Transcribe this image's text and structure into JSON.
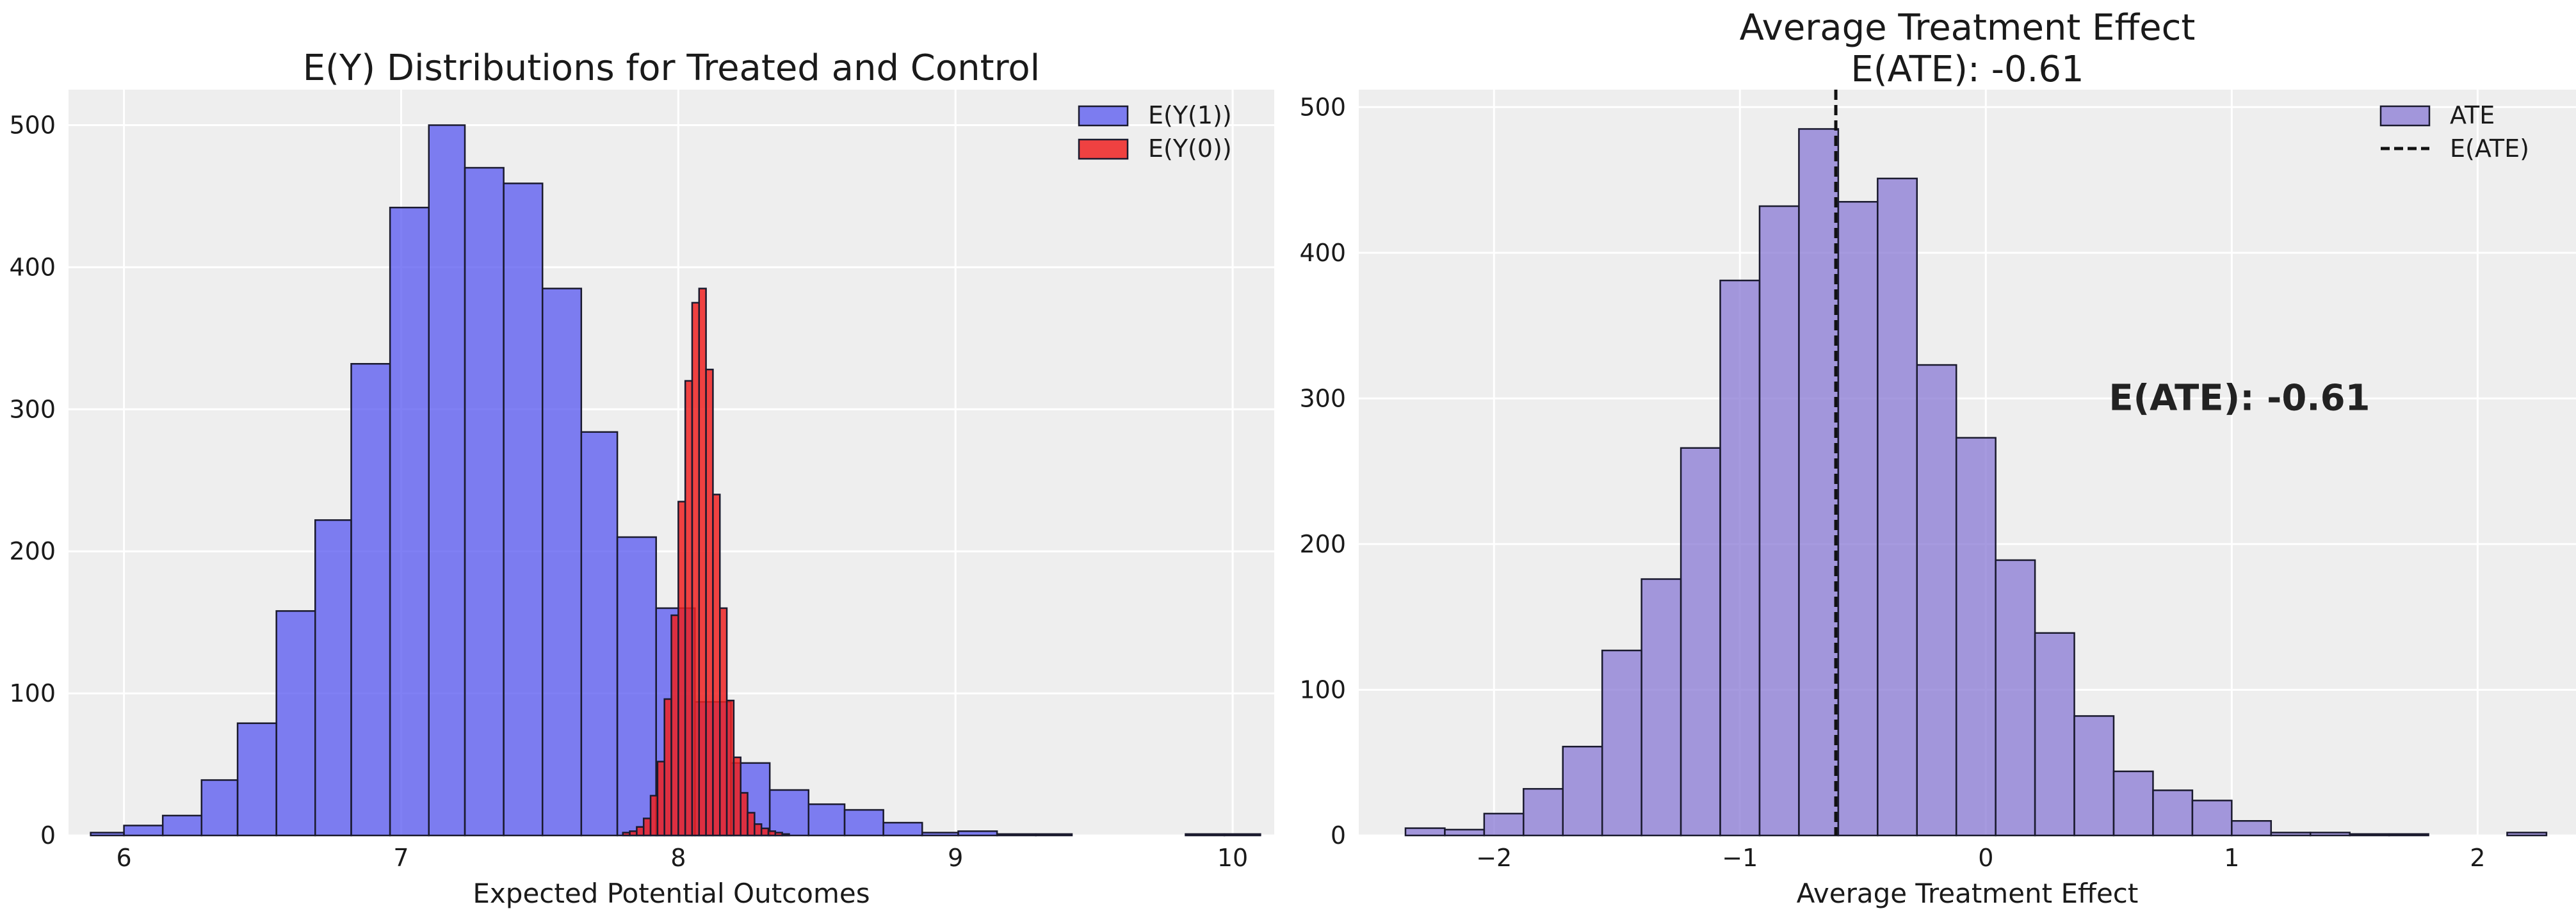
{
  "chart_data": [
    {
      "type": "bar",
      "title": "E(Y) Distributions for Treated and Control",
      "subtitle": "",
      "xlabel": "Expected Potential Outcomes",
      "ylabel": "",
      "xlim": [
        5.8,
        10.15
      ],
      "ylim": [
        0,
        525
      ],
      "xticks": [
        6,
        7,
        8,
        9,
        10
      ],
      "yticks": [
        0,
        100,
        200,
        300,
        400,
        500
      ],
      "grid": true,
      "legend": "top-right",
      "series": [
        {
          "name": "E(Y(1))",
          "color": "#5555f0",
          "opacity": 0.75,
          "bin_edges": [
            5.88,
            6.0,
            6.14,
            6.28,
            6.41,
            6.55,
            6.69,
            6.82,
            6.96,
            7.1,
            7.23,
            7.37,
            7.51,
            7.65,
            7.78,
            7.92,
            8.06,
            8.19,
            8.33,
            8.47,
            8.6,
            8.74,
            8.88,
            9.01,
            9.15,
            9.29,
            9.42,
            9.56,
            9.7,
            9.83,
            9.97,
            10.1
          ],
          "values": [
            2,
            7,
            14,
            39,
            79,
            158,
            222,
            332,
            442,
            500,
            470,
            459,
            385,
            284,
            210,
            160,
            94,
            51,
            32,
            22,
            18,
            9,
            2,
            3,
            1,
            1,
            0,
            0,
            0,
            1,
            1
          ]
        },
        {
          "name": "E(Y(0))",
          "color": "#ee2222",
          "opacity": 0.85,
          "bin_edges": [
            7.8,
            7.825,
            7.85,
            7.875,
            7.9,
            7.925,
            7.95,
            7.975,
            8.0,
            8.025,
            8.05,
            8.075,
            8.1,
            8.125,
            8.15,
            8.175,
            8.2,
            8.225,
            8.25,
            8.275,
            8.3,
            8.325,
            8.35,
            8.375,
            8.4
          ],
          "values": [
            2,
            3,
            6,
            12,
            28,
            52,
            96,
            155,
            235,
            320,
            375,
            385,
            328,
            240,
            160,
            95,
            55,
            30,
            16,
            8,
            5,
            3,
            2,
            1
          ]
        }
      ]
    },
    {
      "type": "bar",
      "title": "Average Treatment Effect",
      "subtitle": "E(ATE): -0.61",
      "xlabel": "Average Treatment Effect",
      "ylabel": "",
      "xlim": [
        -2.55,
        2.4
      ],
      "ylim": [
        0,
        512
      ],
      "xticks": [
        -2,
        -1,
        0,
        1,
        2
      ],
      "xtick_labels": [
        "−2",
        "−1",
        "0",
        "1",
        "2"
      ],
      "yticks": [
        0,
        100,
        200,
        300,
        400,
        500
      ],
      "grid": true,
      "legend": "top-right",
      "series": [
        {
          "name": "ATE",
          "color": "#8878d4",
          "opacity": 0.75,
          "bin_edges": [
            -2.36,
            -2.2,
            -2.04,
            -1.88,
            -1.72,
            -1.56,
            -1.4,
            -1.24,
            -1.08,
            -0.92,
            -0.76,
            -0.6,
            -0.44,
            -0.28,
            -0.12,
            0.04,
            0.2,
            0.36,
            0.52,
            0.68,
            0.84,
            1.0,
            1.16,
            1.32,
            1.48,
            1.64,
            1.8,
            1.96,
            2.12,
            2.28
          ],
          "values": [
            5,
            4,
            15,
            32,
            61,
            127,
            176,
            266,
            381,
            432,
            485,
            435,
            451,
            323,
            273,
            189,
            139,
            82,
            44,
            31,
            24,
            10,
            2,
            2,
            1,
            1,
            0,
            0,
            2
          ]
        }
      ],
      "reference_line": {
        "name": "E(ATE)",
        "x": -0.61,
        "style": "dashed",
        "color": "#111111"
      },
      "annotation": {
        "text": "E(ATE): -0.61",
        "x": 0.5,
        "y": 300
      }
    }
  ]
}
